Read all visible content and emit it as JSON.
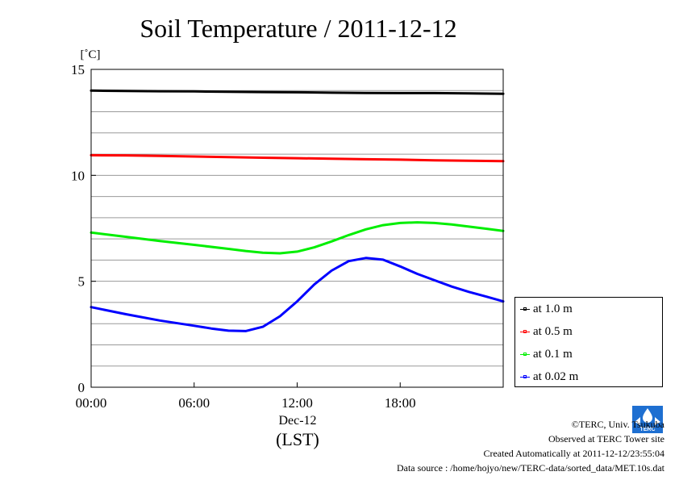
{
  "chart_data": {
    "type": "line",
    "title": "Soil Temperature / 2011-12-12",
    "ylabel": "[˚C]",
    "xlabel": "(LST)",
    "x_sublabel": "Dec-12",
    "xlim": [
      0,
      24
    ],
    "ylim": [
      0,
      15
    ],
    "x_ticks": [
      0,
      6,
      12,
      18
    ],
    "x_tick_labels": [
      "00:00",
      "06:00",
      "12:00",
      "18:00"
    ],
    "y_ticks": [
      0,
      5,
      10,
      15
    ],
    "y_tick_labels": [
      "0",
      "5",
      "10",
      "15"
    ],
    "grid": true,
    "legend_position": "right",
    "series": [
      {
        "name": "at 1.0 m",
        "color": "#000000",
        "x": [
          0,
          2,
          4,
          6,
          8,
          10,
          12,
          14,
          16,
          18,
          20,
          22,
          24
        ],
        "y": [
          14.0,
          13.98,
          13.97,
          13.96,
          13.94,
          13.93,
          13.92,
          13.9,
          13.89,
          13.88,
          13.88,
          13.87,
          13.85
        ]
      },
      {
        "name": "at 0.5 m",
        "color": "#ff0000",
        "x": [
          0,
          2,
          4,
          6,
          8,
          10,
          12,
          14,
          16,
          18,
          20,
          22,
          24
        ],
        "y": [
          10.95,
          10.94,
          10.92,
          10.89,
          10.86,
          10.83,
          10.81,
          10.78,
          10.76,
          10.74,
          10.71,
          10.69,
          10.67
        ]
      },
      {
        "name": "at 0.1 m",
        "color": "#00ee00",
        "x": [
          0,
          2,
          4,
          6,
          8,
          9,
          10,
          11,
          12,
          13,
          14,
          15,
          16,
          17,
          18,
          19,
          20,
          21,
          22,
          23,
          24
        ],
        "y": [
          7.3,
          7.1,
          6.9,
          6.72,
          6.53,
          6.43,
          6.35,
          6.32,
          6.4,
          6.6,
          6.88,
          7.18,
          7.45,
          7.65,
          7.75,
          7.78,
          7.75,
          7.68,
          7.58,
          7.48,
          7.38
        ]
      },
      {
        "name": "at 0.02 m",
        "color": "#0000ff",
        "x": [
          0,
          2,
          4,
          6,
          7,
          8,
          9,
          10,
          11,
          12,
          13,
          14,
          15,
          16,
          17,
          18,
          19,
          20,
          21,
          22,
          23,
          24
        ],
        "y": [
          3.78,
          3.45,
          3.15,
          2.9,
          2.77,
          2.67,
          2.65,
          2.85,
          3.35,
          4.05,
          4.85,
          5.5,
          5.95,
          6.1,
          6.02,
          5.7,
          5.35,
          5.05,
          4.75,
          4.5,
          4.28,
          4.05
        ]
      }
    ]
  },
  "credits": {
    "copyright": "©TERC, Univ. Tsukuba",
    "observed": "Observed at TERC Tower site",
    "created": "Created Automatically at 2011-12-12/23:55:04",
    "source": "Data source : /home/hojyo/new/TERC-data/sorted_data/MET.10s.dat",
    "logo_text": "TERC"
  }
}
